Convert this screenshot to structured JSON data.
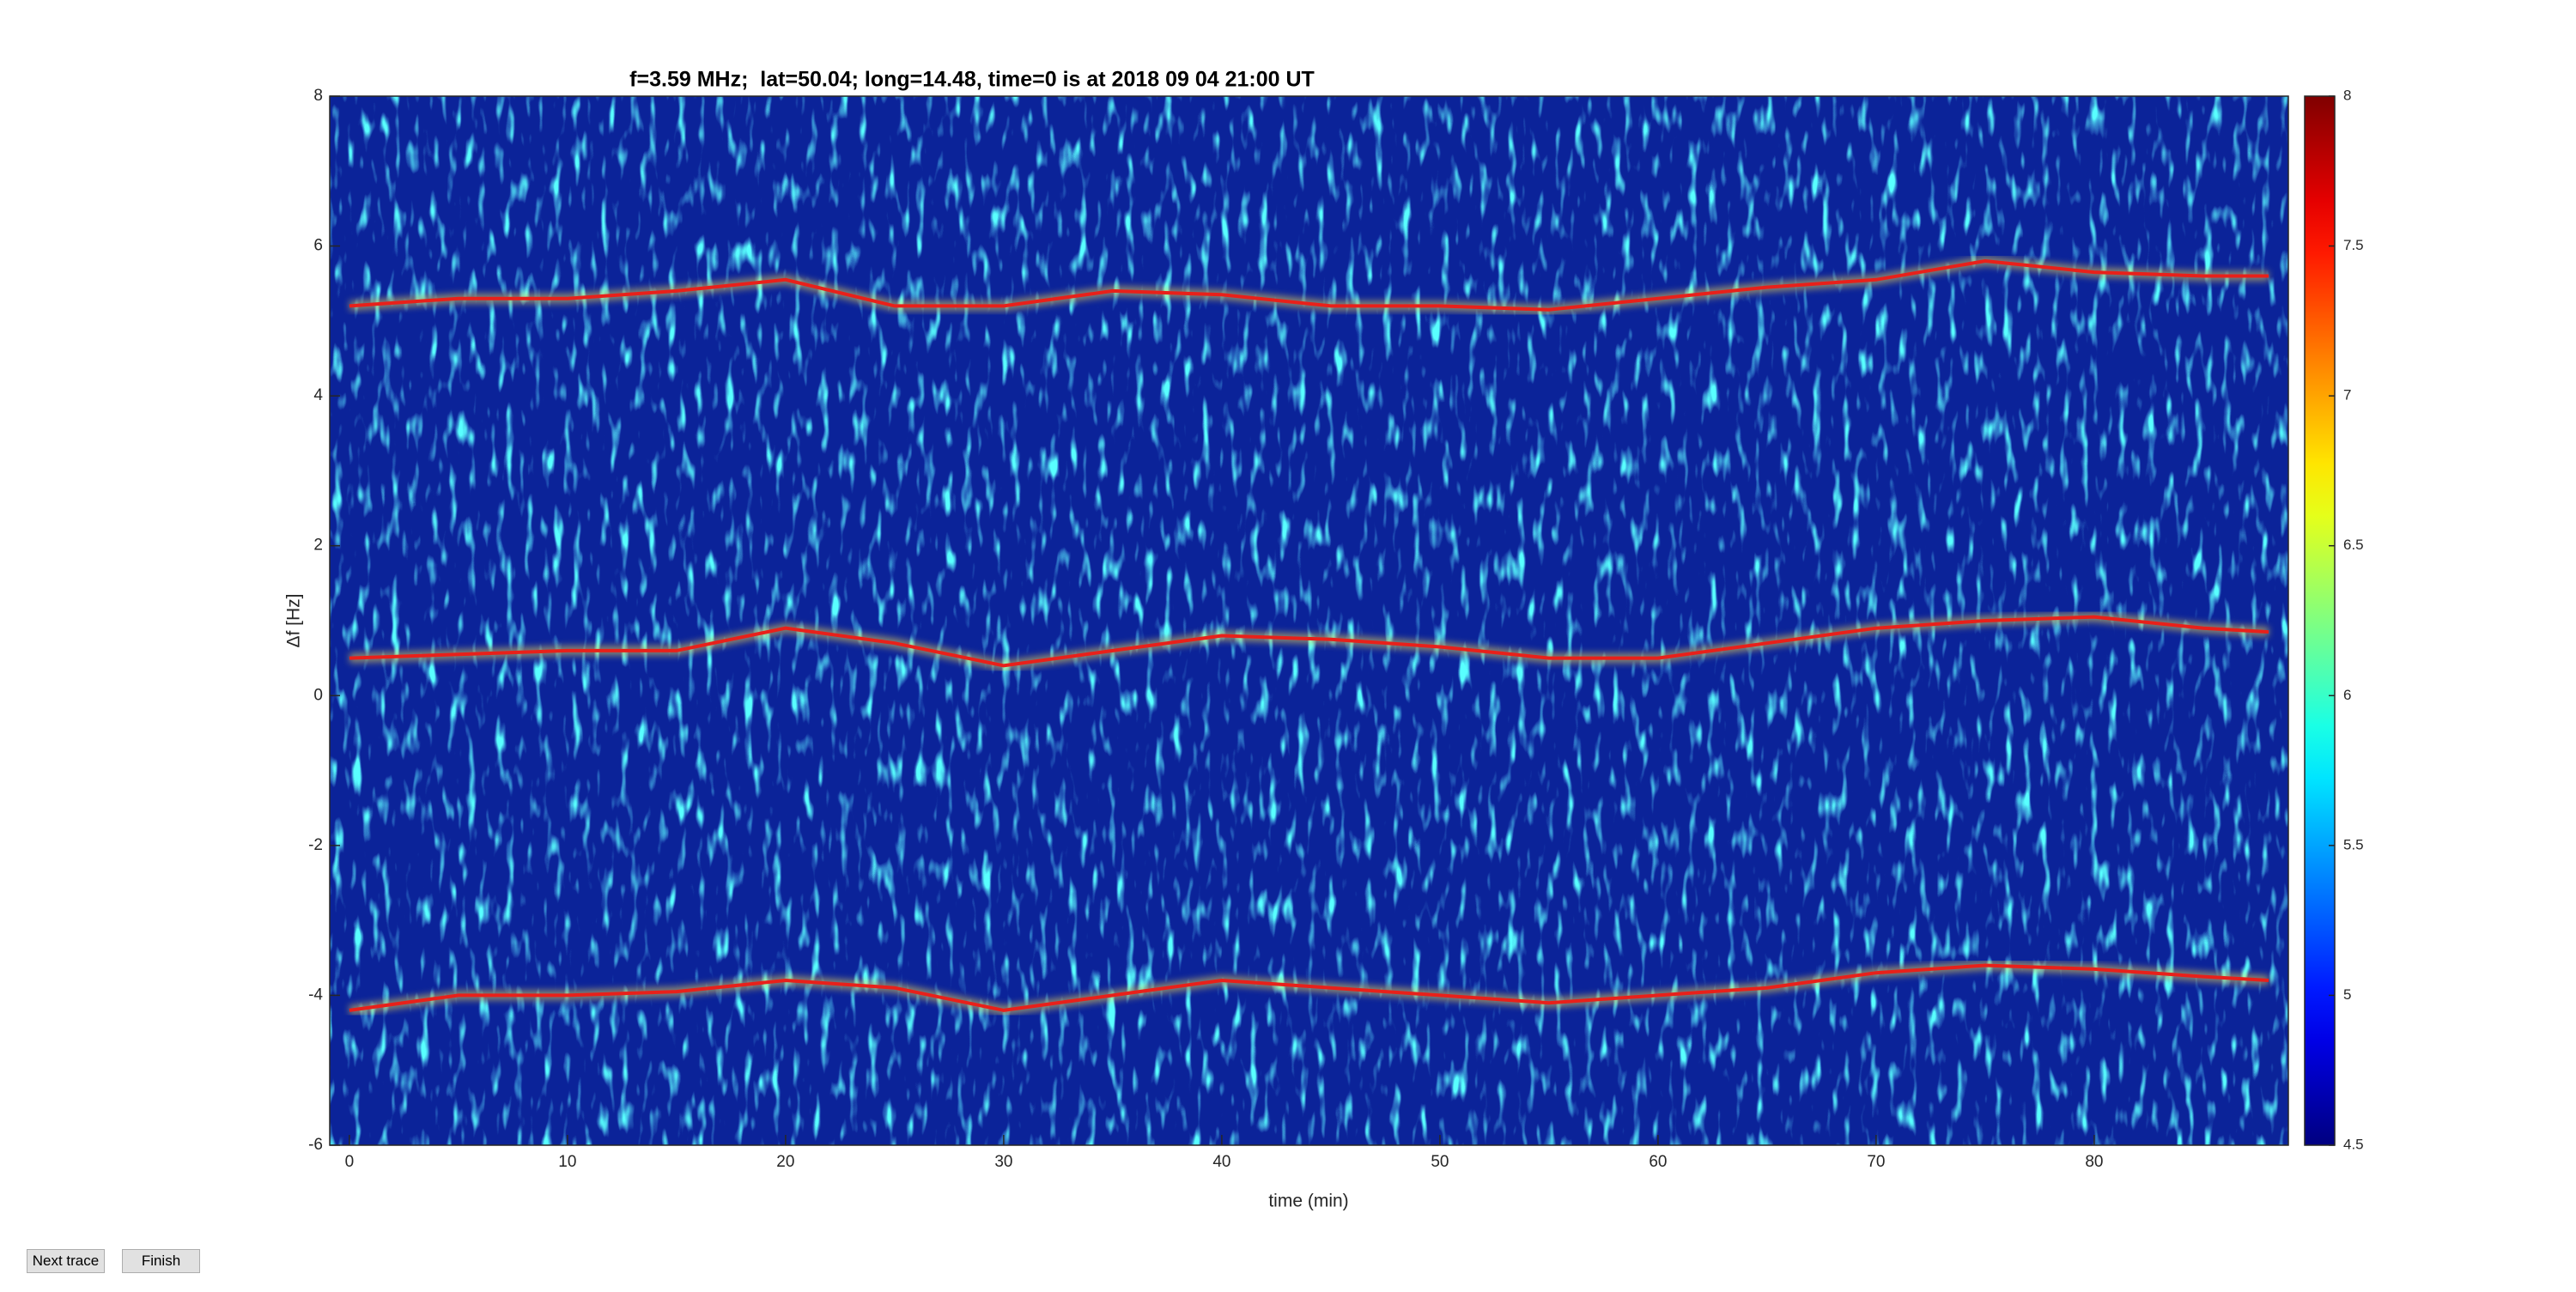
{
  "chart_data": {
    "type": "line",
    "title": "f=3.59 MHz;  lat=50.04; long=14.48, time=0 is at 2018 09 04 21:00 UT",
    "x_label": "time (min)",
    "y_label": "Δf [Hz]",
    "x": [
      0,
      5,
      10,
      15,
      20,
      25,
      30,
      35,
      40,
      45,
      50,
      55,
      60,
      65,
      70,
      75,
      80,
      85,
      88
    ],
    "series": [
      {
        "color": "#e8201a",
        "values": [
          5.2,
          5.3,
          5.3,
          5.4,
          5.55,
          5.2,
          5.2,
          5.4,
          5.35,
          5.2,
          5.2,
          5.15,
          5.3,
          5.45,
          5.55,
          5.8,
          5.65,
          5.6,
          5.6
        ]
      },
      {
        "color": "#e8201a",
        "values": [
          0.5,
          0.55,
          0.6,
          0.6,
          0.9,
          0.7,
          0.4,
          0.6,
          0.8,
          0.75,
          0.65,
          0.5,
          0.5,
          0.7,
          0.9,
          1.0,
          1.05,
          0.9,
          0.85
        ]
      },
      {
        "color": "#e8201a",
        "values": [
          -4.2,
          -4.0,
          -4.0,
          -3.95,
          -3.8,
          -3.9,
          -4.2,
          -4.0,
          -3.8,
          -3.9,
          -4.0,
          -4.1,
          -4.0,
          -3.9,
          -3.7,
          -3.6,
          -3.65,
          -3.75,
          -3.8
        ]
      }
    ],
    "xlim": [
      -0.9,
      88.9
    ],
    "xticks": [
      0,
      10,
      20,
      30,
      40,
      50,
      60,
      70,
      80
    ],
    "ylim": [
      -6,
      8
    ],
    "yticks": [
      -6,
      -4,
      -2,
      0,
      2,
      4,
      6,
      8
    ],
    "background": "#0b2399",
    "colorbar": {
      "colormap": "jet",
      "lim": [
        4.5,
        8
      ],
      "ticks": [
        4.5,
        5,
        5.5,
        6,
        6.5,
        7,
        7.5,
        8
      ]
    }
  },
  "buttons": [
    "Next trace",
    "Finish"
  ]
}
